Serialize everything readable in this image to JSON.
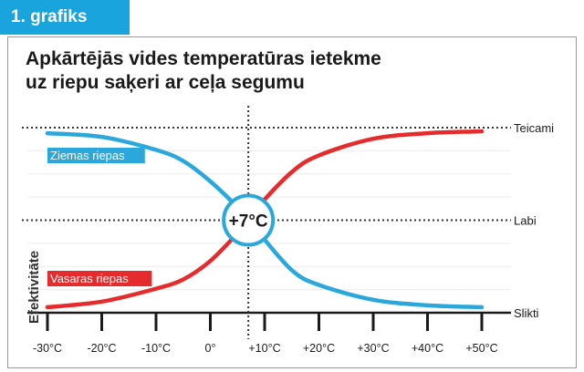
{
  "badge": {
    "label": "1. grafiks"
  },
  "chart_data": {
    "type": "line",
    "title_lines": [
      "Apkārtējās vides temperatūras ietekme",
      "uz riepu saķeri ar ceļa segumu"
    ],
    "ylabel": "Efektivitāte",
    "x_ticks": [
      "-30°C",
      "-20°C",
      "-10°C",
      "0°",
      "+10°C",
      "+20°C",
      "+30°C",
      "+40°C",
      "+50°C"
    ],
    "xlim": [
      -30,
      50
    ],
    "y_levels": [
      {
        "label": "Teicami",
        "value": 1.0
      },
      {
        "label": "Labi",
        "value": 0.5
      },
      {
        "label": "Slikti",
        "value": 0.0
      }
    ],
    "crossover": {
      "label": "+7°C",
      "x": 7,
      "y": 0.5
    },
    "series": [
      {
        "name": "Ziemas riepas",
        "color": "#2aa8dc",
        "x": [
          -30,
          -20,
          -10,
          -5,
          0,
          5,
          7,
          9,
          15,
          20,
          30,
          40,
          50
        ],
        "y": [
          0.97,
          0.95,
          0.88,
          0.82,
          0.71,
          0.57,
          0.5,
          0.43,
          0.23,
          0.15,
          0.07,
          0.04,
          0.03
        ]
      },
      {
        "name": "Vasaras riepas",
        "color": "#e52b2b",
        "x": [
          -30,
          -20,
          -10,
          -5,
          0,
          5,
          7,
          9,
          15,
          20,
          30,
          40,
          50
        ],
        "y": [
          0.03,
          0.06,
          0.13,
          0.18,
          0.28,
          0.43,
          0.5,
          0.58,
          0.76,
          0.85,
          0.94,
          0.97,
          0.98
        ]
      }
    ]
  }
}
